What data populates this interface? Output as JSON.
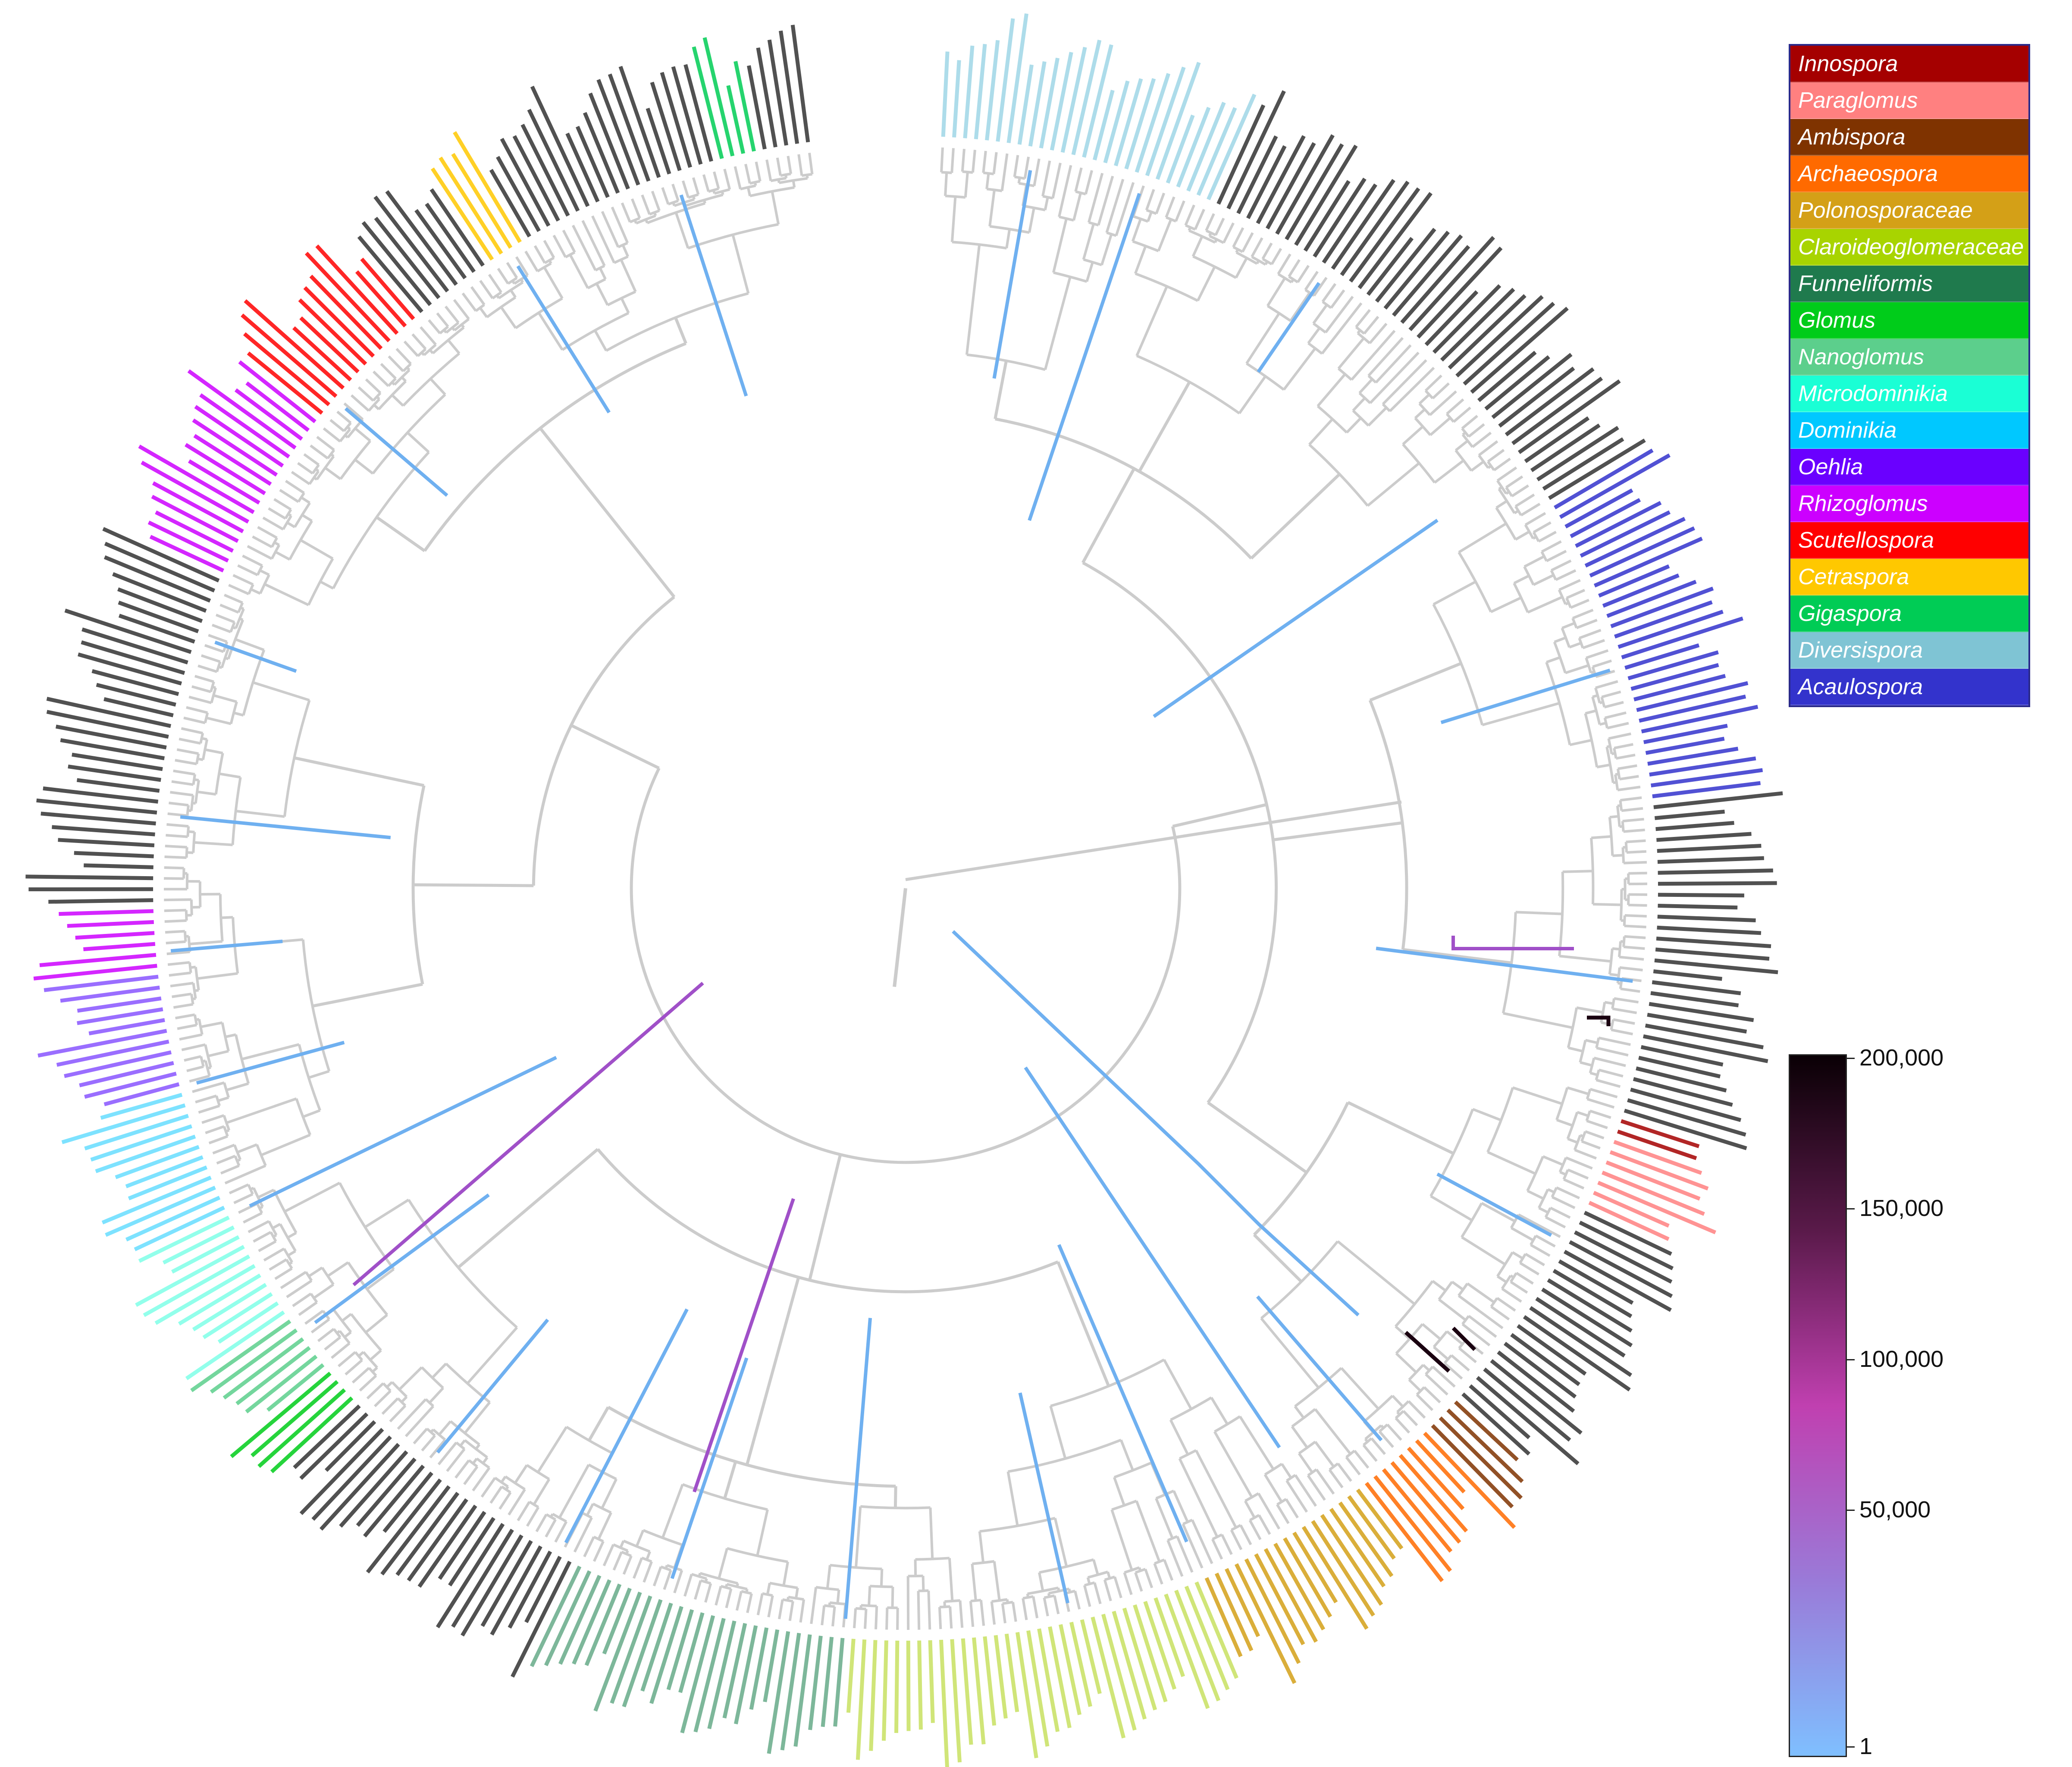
{
  "legend": {
    "title": "",
    "items": [
      {
        "label": "Innospora",
        "color": "#a50000"
      },
      {
        "label": "Paraglomus",
        "color": "#ff8080"
      },
      {
        "label": "Ambispora",
        "color": "#7f3300"
      },
      {
        "label": "Archaeospora",
        "color": "#ff6a00"
      },
      {
        "label": "Polonosporaceae",
        "color": "#d4a017"
      },
      {
        "label": "Claroideoglomeraceae",
        "color": "#a8d400"
      },
      {
        "label": "Funneliformis",
        "color": "#1f7a4d"
      },
      {
        "label": "Glomus",
        "color": "#00cc1a"
      },
      {
        "label": "Nanoglomus",
        "color": "#5ccf8c"
      },
      {
        "label": "Microdominikia",
        "color": "#1affd5"
      },
      {
        "label": "Dominikia",
        "color": "#00c8ff"
      },
      {
        "label": "Oehlia",
        "color": "#6a00ff"
      },
      {
        "label": "Rhizoglomus",
        "color": "#cc00ff"
      },
      {
        "label": "Scutellospora",
        "color": "#ff0000"
      },
      {
        "label": "Cetraspora",
        "color": "#ffc800"
      },
      {
        "label": "Gigaspora",
        "color": "#00cc55"
      },
      {
        "label": "Diversispora",
        "color": "#7fc4d4"
      },
      {
        "label": "Acaulospora",
        "color": "#3333cc"
      }
    ]
  },
  "scale_bar": {
    "labels": [
      "200,000",
      "150,000",
      "100,000",
      "50,000",
      "1"
    ],
    "gradient_colors": [
      "#0a0005",
      "#5a1a4a",
      "#c040b0",
      "#9a7ad8",
      "#7fbfff"
    ]
  },
  "tree": {
    "branch_color": "#cccccc",
    "highlight_color": "#6fb0f0",
    "highlight_purple": "#a050c8",
    "highlight_dark": "#1a0010"
  }
}
